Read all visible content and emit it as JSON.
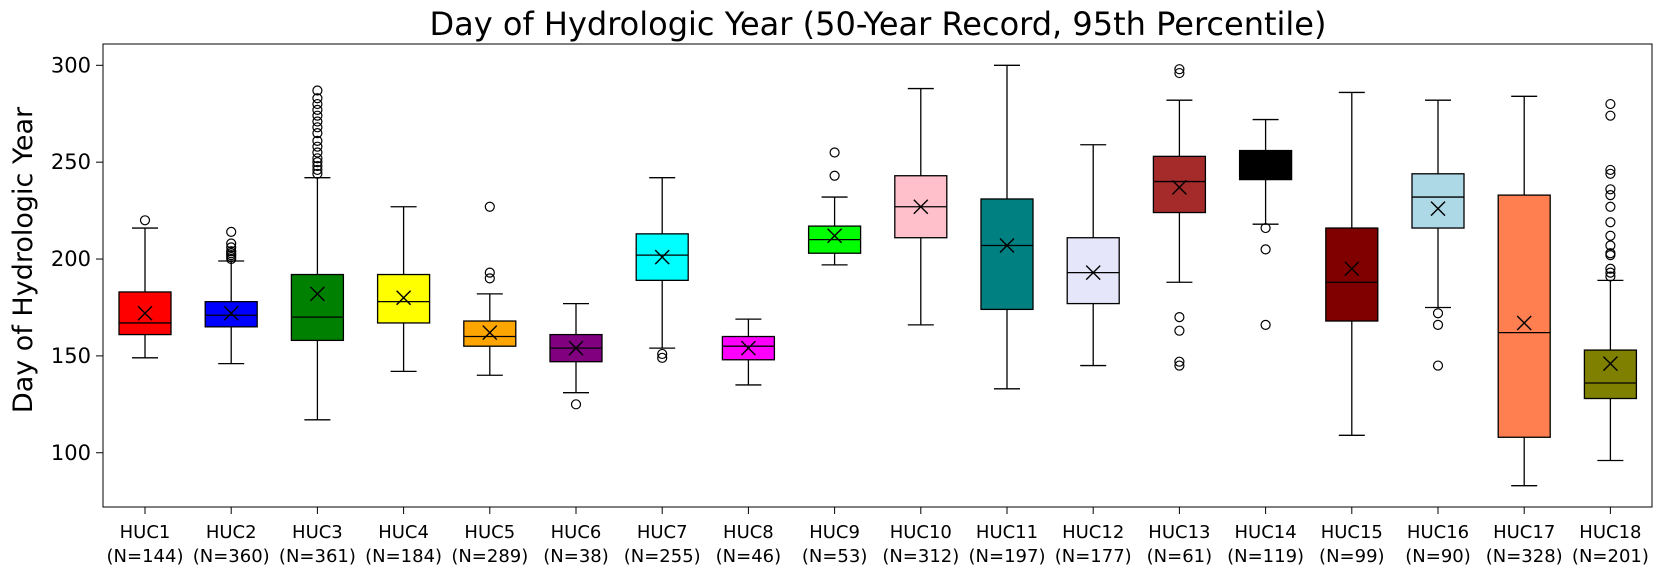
{
  "chart_data": {
    "type": "box",
    "title": "Day of Hydrologic Year (50-Year Record, 95th Percentile)",
    "xlabel": "",
    "ylabel": "Day of Hydrologic Year",
    "ylim": [
      72,
      311
    ],
    "yticks": [
      100,
      150,
      200,
      250,
      300
    ],
    "grid": false,
    "legend": "none",
    "mean_marker": "x",
    "outlier_marker": "open-circle",
    "categories": [
      {
        "name": "HUC1",
        "n_label": "(N=144)",
        "color": "#ff0000",
        "whisker_low": 149,
        "q1": 161,
        "median": 167,
        "q3": 183,
        "whisker_high": 216,
        "mean": 172,
        "outliers": [
          220
        ]
      },
      {
        "name": "HUC2",
        "n_label": "(N=360)",
        "color": "#0000ff",
        "whisker_low": 146,
        "q1": 165,
        "median": 171,
        "q3": 178,
        "whisker_high": 199,
        "mean": 172,
        "outliers": [
          200,
          201,
          202,
          203,
          204,
          206,
          208,
          214
        ]
      },
      {
        "name": "HUC3",
        "n_label": "(N=361)",
        "color": "#008000",
        "whisker_low": 117,
        "q1": 158,
        "median": 170,
        "q3": 192,
        "whisker_high": 242,
        "mean": 182,
        "outliers": [
          244,
          246,
          248,
          250,
          252,
          255,
          258,
          261,
          265,
          268,
          271,
          274,
          277,
          280,
          283,
          287
        ]
      },
      {
        "name": "HUC4",
        "n_label": "(N=184)",
        "color": "#ffff00",
        "whisker_low": 142,
        "q1": 167,
        "median": 178,
        "q3": 192,
        "whisker_high": 227,
        "mean": 180,
        "outliers": []
      },
      {
        "name": "HUC5",
        "n_label": "(N=289)",
        "color": "#ffa500",
        "whisker_low": 140,
        "q1": 155,
        "median": 160,
        "q3": 168,
        "whisker_high": 182,
        "mean": 162,
        "outliers": [
          190,
          193,
          227
        ]
      },
      {
        "name": "HUC6",
        "n_label": "(N=38)",
        "color": "#800080",
        "whisker_low": 131,
        "q1": 147,
        "median": 154,
        "q3": 161,
        "whisker_high": 177,
        "mean": 154,
        "outliers": [
          125
        ]
      },
      {
        "name": "HUC7",
        "n_label": "(N=255)",
        "color": "#00ffff",
        "whisker_low": 154,
        "q1": 189,
        "median": 202,
        "q3": 213,
        "whisker_high": 242,
        "mean": 201,
        "outliers": [
          149,
          151
        ]
      },
      {
        "name": "HUC8",
        "n_label": "(N=46)",
        "color": "#ff00ff",
        "whisker_low": 135,
        "q1": 148,
        "median": 155,
        "q3": 160,
        "whisker_high": 169,
        "mean": 154,
        "outliers": []
      },
      {
        "name": "HUC9",
        "n_label": "(N=53)",
        "color": "#00ff00",
        "whisker_low": 197,
        "q1": 203,
        "median": 210,
        "q3": 217,
        "whisker_high": 232,
        "mean": 212,
        "outliers": [
          243,
          255
        ]
      },
      {
        "name": "HUC10",
        "n_label": "(N=312)",
        "color": "#ffc0cb",
        "whisker_low": 166,
        "q1": 211,
        "median": 227,
        "q3": 243,
        "whisker_high": 288,
        "mean": 227,
        "outliers": []
      },
      {
        "name": "HUC11",
        "n_label": "(N=197)",
        "color": "#008080",
        "whisker_low": 133,
        "q1": 174,
        "median": 207,
        "q3": 231,
        "whisker_high": 300,
        "mean": 207,
        "outliers": []
      },
      {
        "name": "HUC12",
        "n_label": "(N=177)",
        "color": "#e6e6fa",
        "whisker_low": 145,
        "q1": 177,
        "median": 193,
        "q3": 211,
        "whisker_high": 259,
        "mean": 193,
        "outliers": []
      },
      {
        "name": "HUC13",
        "n_label": "(N=61)",
        "color": "#a52a2a",
        "whisker_low": 188,
        "q1": 224,
        "median": 240,
        "q3": 253,
        "whisker_high": 282,
        "mean": 237,
        "outliers": [
          145,
          147,
          163,
          170,
          296,
          298
        ]
      },
      {
        "name": "HUC14",
        "n_label": "(N=119)",
        "color": "#000000",
        "whisker_low": 218,
        "q1": 241,
        "median": 248,
        "q3": 256,
        "whisker_high": 272,
        "mean": 248,
        "outliers": [
          166,
          205,
          216
        ]
      },
      {
        "name": "HUC15",
        "n_label": "(N=99)",
        "color": "#800000",
        "whisker_low": 109,
        "q1": 168,
        "median": 188,
        "q3": 216,
        "whisker_high": 286,
        "mean": 195,
        "outliers": []
      },
      {
        "name": "HUC16",
        "n_label": "(N=90)",
        "color": "#add8e6",
        "whisker_low": 175,
        "q1": 216,
        "median": 232,
        "q3": 244,
        "whisker_high": 282,
        "mean": 226,
        "outliers": [
          145,
          166,
          172
        ]
      },
      {
        "name": "HUC17",
        "n_label": "(N=328)",
        "color": "#ff7f50",
        "whisker_low": 83,
        "q1": 108,
        "median": 162,
        "q3": 233,
        "whisker_high": 284,
        "mean": 167,
        "outliers": []
      },
      {
        "name": "HUC18",
        "n_label": "(N=201)",
        "color": "#808000",
        "whisker_low": 96,
        "q1": 128,
        "median": 136,
        "q3": 153,
        "whisker_high": 189,
        "mean": 146,
        "outliers": [
          191,
          193,
          195,
          202,
          203,
          207,
          212,
          219,
          227,
          233,
          236,
          244,
          246,
          274,
          280
        ]
      }
    ]
  }
}
